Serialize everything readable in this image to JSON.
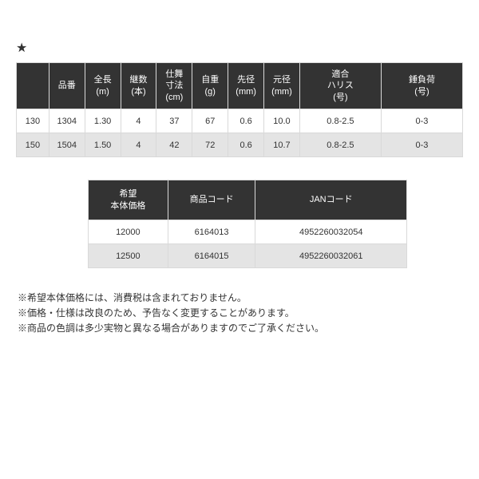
{
  "star": "★",
  "table1": {
    "headers": [
      "",
      "品番",
      "全長\n(m)",
      "継数\n(本)",
      "仕舞\n寸法\n(cm)",
      "自重\n(g)",
      "先径\n(mm)",
      "元径\n(mm)",
      "適合\nハリス\n(号)",
      "錘負荷\n(号)"
    ],
    "rows": [
      [
        "130",
        "1304",
        "1.30",
        "4",
        "37",
        "67",
        "0.6",
        "10.0",
        "0.8-2.5",
        "0-3"
      ],
      [
        "150",
        "1504",
        "1.50",
        "4",
        "42",
        "72",
        "0.6",
        "10.7",
        "0.8-2.5",
        "0-3"
      ]
    ]
  },
  "table2": {
    "headers": [
      "希望\n本体価格",
      "商品コード",
      "JANコード"
    ],
    "rows": [
      [
        "12000",
        "6164013",
        "4952260032054"
      ],
      [
        "12500",
        "6164015",
        "4952260032061"
      ]
    ]
  },
  "notes": [
    "※希望本体価格には、消費税は含まれておりません。",
    "※価格・仕様は改良のため、予告なく変更することがあります。",
    "※商品の色調は多少実物と異なる場合がありますのでご了承ください。"
  ],
  "colors": {
    "header_bg": "#333333",
    "header_fg": "#ffffff",
    "border": "#d9d9d9",
    "row_alt": "#e4e4e4",
    "background": "#ffffff",
    "text": "#333333"
  }
}
